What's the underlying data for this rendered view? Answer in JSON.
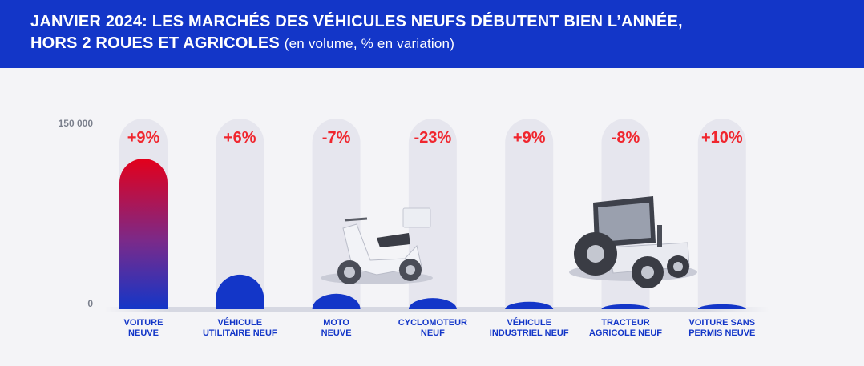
{
  "header": {
    "title_line1": "JANVIER 2024:  LES MARCHÉS DES VÉHICULES NEUFS DÉBUTENT BIEN L’ANNÉE,",
    "title_line2": "HORS 2 ROUES ET AGRICOLES",
    "subtitle": "(en volume, % en variation)"
  },
  "colors": {
    "header_bg": "#1336c8",
    "bar_blue": "#1336c8",
    "bar_red": "#e3001b",
    "track": "#e6e6ee",
    "delta": "#f0262e"
  },
  "chart_data": {
    "type": "bar",
    "categories": [
      "VOITURE\nNEUVE",
      "VÉHICULE\nUTILITAIRE NEUF",
      "MOTO\nNEUVE",
      "CYCLOMOTEUR\nNEUF",
      "VÉHICULE\nINDUSTRIEL NEUF",
      "TRACTEUR\nAGRICOLE NEUF",
      "VOITURE SANS\nPERMIS NEUVE"
    ],
    "values": [
      122000,
      28000,
      12500,
      9000,
      6000,
      4000,
      4000
    ],
    "variation_labels": [
      "+9%",
      "+6%",
      "-7%",
      "-23%",
      "+9%",
      "-8%",
      "+10%"
    ],
    "ylim": [
      0,
      150000
    ],
    "yticks": [
      "0",
      "150 000"
    ],
    "grid": false
  },
  "icons": [
    "scooter-illustration",
    "tractor-illustration"
  ]
}
